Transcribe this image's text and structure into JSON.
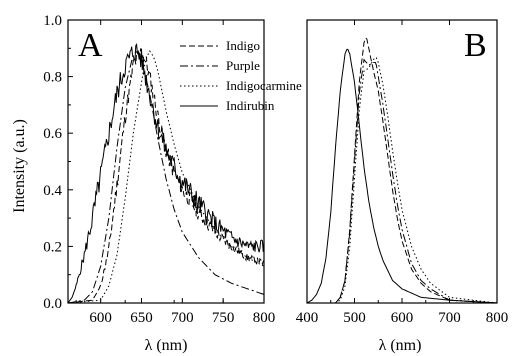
{
  "chart_data": [
    {
      "panel": "A",
      "type": "line",
      "xlabel": "λ (nm)",
      "ylabel": "Intensity (a.u.)",
      "xlim": [
        560,
        800
      ],
      "ylim": [
        0.0,
        1.0
      ],
      "xticks": [
        600,
        650,
        700,
        750,
        800
      ],
      "yticks": [
        "0.0",
        "0.2",
        "0.4",
        "0.6",
        "0.8",
        "1.0"
      ],
      "legend_position": "top-right",
      "series": [
        {
          "name": "Indigo",
          "dash": "6,3",
          "noise": 0.03,
          "seed": 11,
          "points": [
            [
              560,
              0
            ],
            [
              590,
              0.01
            ],
            [
              600,
              0.06
            ],
            [
              610,
              0.19
            ],
            [
              620,
              0.42
            ],
            [
              630,
              0.66
            ],
            [
              640,
              0.84
            ],
            [
              650,
              0.89
            ],
            [
              655,
              0.86
            ],
            [
              660,
              0.8
            ],
            [
              670,
              0.66
            ],
            [
              680,
              0.54
            ],
            [
              690,
              0.46
            ],
            [
              700,
              0.4
            ],
            [
              720,
              0.32
            ],
            [
              740,
              0.25
            ],
            [
              760,
              0.2
            ],
            [
              780,
              0.16
            ],
            [
              800,
              0.14
            ]
          ]
        },
        {
          "name": "Purple",
          "dash": "8,3,2,3",
          "noise": 0.0,
          "seed": 0,
          "points": [
            [
              560,
              0
            ],
            [
              580,
              0.01
            ],
            [
              590,
              0.04
            ],
            [
              600,
              0.13
            ],
            [
              610,
              0.3
            ],
            [
              620,
              0.55
            ],
            [
              630,
              0.76
            ],
            [
              640,
              0.88
            ],
            [
              645,
              0.89
            ],
            [
              650,
              0.86
            ],
            [
              660,
              0.74
            ],
            [
              670,
              0.58
            ],
            [
              680,
              0.44
            ],
            [
              690,
              0.33
            ],
            [
              700,
              0.25
            ],
            [
              720,
              0.16
            ],
            [
              740,
              0.1
            ],
            [
              760,
              0.07
            ],
            [
              780,
              0.05
            ],
            [
              800,
              0.03
            ]
          ]
        },
        {
          "name": "Indigocarmine",
          "dash": "1.5,2.5",
          "noise": 0.0,
          "seed": 0,
          "points": [
            [
              560,
              0
            ],
            [
              600,
              0.01
            ],
            [
              610,
              0.06
            ],
            [
              620,
              0.17
            ],
            [
              630,
              0.37
            ],
            [
              640,
              0.6
            ],
            [
              650,
              0.78
            ],
            [
              655,
              0.86
            ],
            [
              660,
              0.89
            ],
            [
              665,
              0.87
            ],
            [
              670,
              0.82
            ],
            [
              680,
              0.68
            ],
            [
              690,
              0.56
            ],
            [
              700,
              0.46
            ],
            [
              720,
              0.34
            ],
            [
              740,
              0.26
            ],
            [
              760,
              0.2
            ],
            [
              780,
              0.16
            ],
            [
              800,
              0.13
            ]
          ]
        },
        {
          "name": "Indirubin",
          "dash": "",
          "noise": 0.04,
          "seed": 5,
          "points": [
            [
              560,
              0
            ],
            [
              565,
              0.02
            ],
            [
              570,
              0.06
            ],
            [
              580,
              0.17
            ],
            [
              590,
              0.3
            ],
            [
              600,
              0.45
            ],
            [
              610,
              0.6
            ],
            [
              620,
              0.74
            ],
            [
              630,
              0.84
            ],
            [
              640,
              0.89
            ],
            [
              645,
              0.89
            ],
            [
              650,
              0.86
            ],
            [
              660,
              0.74
            ],
            [
              670,
              0.62
            ],
            [
              680,
              0.54
            ],
            [
              690,
              0.48
            ],
            [
              700,
              0.43
            ],
            [
              720,
              0.35
            ],
            [
              740,
              0.28
            ],
            [
              760,
              0.23
            ],
            [
              780,
              0.2
            ],
            [
              800,
              0.2
            ]
          ]
        }
      ]
    },
    {
      "panel": "B",
      "type": "line",
      "xlabel": "λ (nm)",
      "xlim": [
        400,
        800
      ],
      "ylim": [
        0.0,
        1.0
      ],
      "xticks": [
        400,
        500,
        600,
        700,
        800
      ],
      "series": [
        {
          "name": "Indigo",
          "dash": "6,3",
          "noise": 0.0,
          "seed": 0,
          "points": [
            [
              400,
              0
            ],
            [
              460,
              0
            ],
            [
              470,
              0.02
            ],
            [
              480,
              0.08
            ],
            [
              490,
              0.26
            ],
            [
              500,
              0.52
            ],
            [
              510,
              0.78
            ],
            [
              520,
              0.92
            ],
            [
              525,
              0.94
            ],
            [
              530,
              0.9
            ],
            [
              540,
              0.82
            ],
            [
              550,
              0.75
            ],
            [
              560,
              0.64
            ],
            [
              570,
              0.52
            ],
            [
              580,
              0.4
            ],
            [
              590,
              0.3
            ],
            [
              600,
              0.22
            ],
            [
              620,
              0.12
            ],
            [
              640,
              0.07
            ],
            [
              660,
              0.04
            ],
            [
              700,
              0.01
            ],
            [
              800,
              0
            ]
          ]
        },
        {
          "name": "Purple",
          "dash": "8,3,2,3",
          "noise": 0.0,
          "seed": 0,
          "points": [
            [
              400,
              0
            ],
            [
              460,
              0
            ],
            [
              470,
              0.02
            ],
            [
              480,
              0.08
            ],
            [
              490,
              0.25
            ],
            [
              500,
              0.5
            ],
            [
              510,
              0.74
            ],
            [
              520,
              0.86
            ],
            [
              530,
              0.84
            ],
            [
              540,
              0.85
            ],
            [
              545,
              0.85
            ],
            [
              550,
              0.8
            ],
            [
              560,
              0.7
            ],
            [
              570,
              0.58
            ],
            [
              580,
              0.46
            ],
            [
              590,
              0.35
            ],
            [
              600,
              0.26
            ],
            [
              620,
              0.14
            ],
            [
              640,
              0.08
            ],
            [
              660,
              0.05
            ],
            [
              700,
              0.01
            ],
            [
              800,
              0
            ]
          ]
        },
        {
          "name": "Indigocarmine",
          "dash": "1.5,2.5",
          "noise": 0.0,
          "seed": 0,
          "points": [
            [
              400,
              0
            ],
            [
              460,
              0
            ],
            [
              470,
              0.01
            ],
            [
              480,
              0.06
            ],
            [
              490,
              0.2
            ],
            [
              500,
              0.44
            ],
            [
              510,
              0.68
            ],
            [
              520,
              0.82
            ],
            [
              530,
              0.83
            ],
            [
              540,
              0.86
            ],
            [
              545,
              0.87
            ],
            [
              550,
              0.85
            ],
            [
              560,
              0.77
            ],
            [
              570,
              0.66
            ],
            [
              580,
              0.54
            ],
            [
              590,
              0.43
            ],
            [
              600,
              0.33
            ],
            [
              620,
              0.2
            ],
            [
              640,
              0.12
            ],
            [
              660,
              0.07
            ],
            [
              700,
              0.02
            ],
            [
              800,
              0
            ]
          ]
        },
        {
          "name": "Indirubin",
          "dash": "",
          "noise": 0.0,
          "seed": 0,
          "points": [
            [
              400,
              0
            ],
            [
              410,
              0.01
            ],
            [
              420,
              0.03
            ],
            [
              430,
              0.07
            ],
            [
              440,
              0.16
            ],
            [
              450,
              0.32
            ],
            [
              460,
              0.55
            ],
            [
              470,
              0.75
            ],
            [
              480,
              0.88
            ],
            [
              485,
              0.9
            ],
            [
              490,
              0.88
            ],
            [
              500,
              0.78
            ],
            [
              510,
              0.63
            ],
            [
              520,
              0.48
            ],
            [
              530,
              0.36
            ],
            [
              540,
              0.27
            ],
            [
              550,
              0.2
            ],
            [
              560,
              0.15
            ],
            [
              580,
              0.08
            ],
            [
              600,
              0.05
            ],
            [
              640,
              0.02
            ],
            [
              700,
              0.01
            ],
            [
              800,
              0
            ]
          ]
        }
      ]
    }
  ]
}
